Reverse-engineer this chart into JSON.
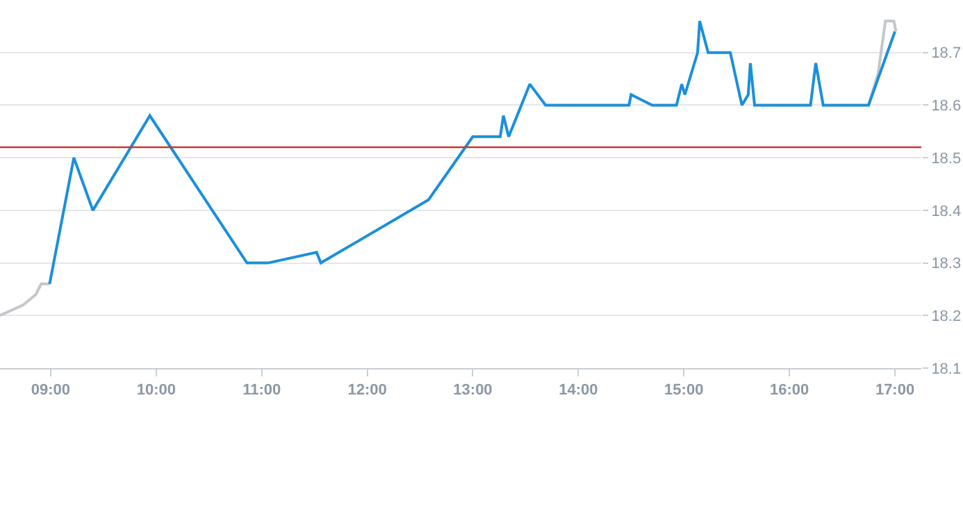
{
  "chart_data": {
    "type": "line",
    "xlim": [
      8.52,
      17.25
    ],
    "ylim": [
      18.1,
      18.8
    ],
    "xticks": [
      {
        "value": 9,
        "label": "09:00"
      },
      {
        "value": 10,
        "label": "10:00"
      },
      {
        "value": 11,
        "label": "11:00"
      },
      {
        "value": 12,
        "label": "12:00"
      },
      {
        "value": 13,
        "label": "13:00"
      },
      {
        "value": 14,
        "label": "14:00"
      },
      {
        "value": 15,
        "label": "15:00"
      },
      {
        "value": 16,
        "label": "16:00"
      },
      {
        "value": 17,
        "label": "17:00"
      }
    ],
    "yticks": [
      18.1,
      18.2,
      18.3,
      18.4,
      18.5,
      18.6,
      18.7
    ],
    "grid": "y",
    "marker": "none",
    "line_style": "solid",
    "ref_lines": [
      {
        "axis": "y",
        "value": 18.52,
        "color": "#d0342c"
      }
    ],
    "series": [
      {
        "color": "#c3c7cc",
        "x": [
          8.52,
          8.74,
          8.86,
          8.91,
          8.99
        ],
        "values": [
          18.2,
          18.22,
          18.24,
          18.26,
          18.26
        ]
      },
      {
        "color": "#c3c7cc",
        "x": [
          16.75,
          16.84,
          16.91,
          16.99,
          17.01
        ],
        "values": [
          18.6,
          18.66,
          18.76,
          18.76,
          18.74
        ]
      },
      {
        "color": "#1b8fdb",
        "x": [
          8.99,
          9.22,
          9.4,
          9.94,
          10.86,
          11.06,
          11.52,
          11.56,
          12.58,
          13.0,
          13.26,
          13.29,
          13.34,
          13.46,
          13.54,
          13.69,
          14.48,
          14.5,
          14.7,
          14.93,
          14.98,
          15.01,
          15.13,
          15.15,
          15.23,
          15.44,
          15.55,
          15.61,
          15.63,
          15.67,
          16.2,
          16.25,
          16.32,
          16.75,
          17.0
        ],
        "values": [
          18.26,
          18.5,
          18.4,
          18.58,
          18.3,
          18.3,
          18.32,
          18.3,
          18.42,
          18.54,
          18.54,
          18.58,
          18.54,
          18.6,
          18.64,
          18.6,
          18.6,
          18.62,
          18.6,
          18.6,
          18.64,
          18.62,
          18.7,
          18.76,
          18.7,
          18.7,
          18.6,
          18.62,
          18.68,
          18.6,
          18.6,
          18.68,
          18.6,
          18.6,
          18.74
        ]
      }
    ]
  }
}
